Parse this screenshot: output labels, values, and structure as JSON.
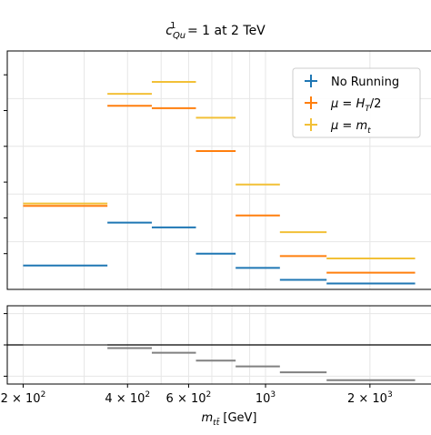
{
  "chart_data": [
    {
      "type": "step",
      "title": "c_Qu^1 = 1 at 2 TeV",
      "title_parts": {
        "sym": "c",
        "sup": "1",
        "sub": "Qu",
        "rest": " = 1 at 2 TeV"
      },
      "xscale": "log",
      "xlim": [
        180,
        3000
      ],
      "x_tick_labels": [
        "2 × 10^2",
        "4 × 10^2",
        "6 × 10^2",
        "10^3",
        "2 × 10^3"
      ],
      "x_tick_values": [
        200,
        400,
        600,
        1000,
        2000
      ],
      "bin_edges": [
        200,
        350,
        470,
        630,
        820,
        1100,
        1500,
        2700
      ],
      "ylim": [
        0,
        1
      ],
      "grid": true,
      "legend_position": "upper right",
      "series": [
        {
          "name": "No Running",
          "color": "#1f77b4",
          "values": [
            0.1,
            0.28,
            0.26,
            0.15,
            0.09,
            0.04,
            0.025
          ]
        },
        {
          "name": "μ = H_T/2",
          "color": "#ff7f0e",
          "values": [
            0.35,
            0.77,
            0.76,
            0.58,
            0.31,
            0.14,
            0.07
          ]
        },
        {
          "name": "μ = m_t",
          "color": "#f2c037",
          "values": [
            0.36,
            0.82,
            0.87,
            0.72,
            0.44,
            0.24,
            0.13
          ]
        }
      ]
    },
    {
      "type": "step",
      "panel": "ratio",
      "xlabel": "m_tt̄ [GeV]",
      "xlabel_parts": {
        "sym": "m",
        "sub": "tt̄",
        "unit": " [GeV]"
      },
      "ylim": [
        -1,
        1
      ],
      "reference_line": 0,
      "series": [
        {
          "color": "#808080",
          "values": [
            0.0,
            -0.08,
            -0.2,
            -0.4,
            -0.55,
            -0.7,
            -0.9
          ]
        }
      ]
    }
  ]
}
